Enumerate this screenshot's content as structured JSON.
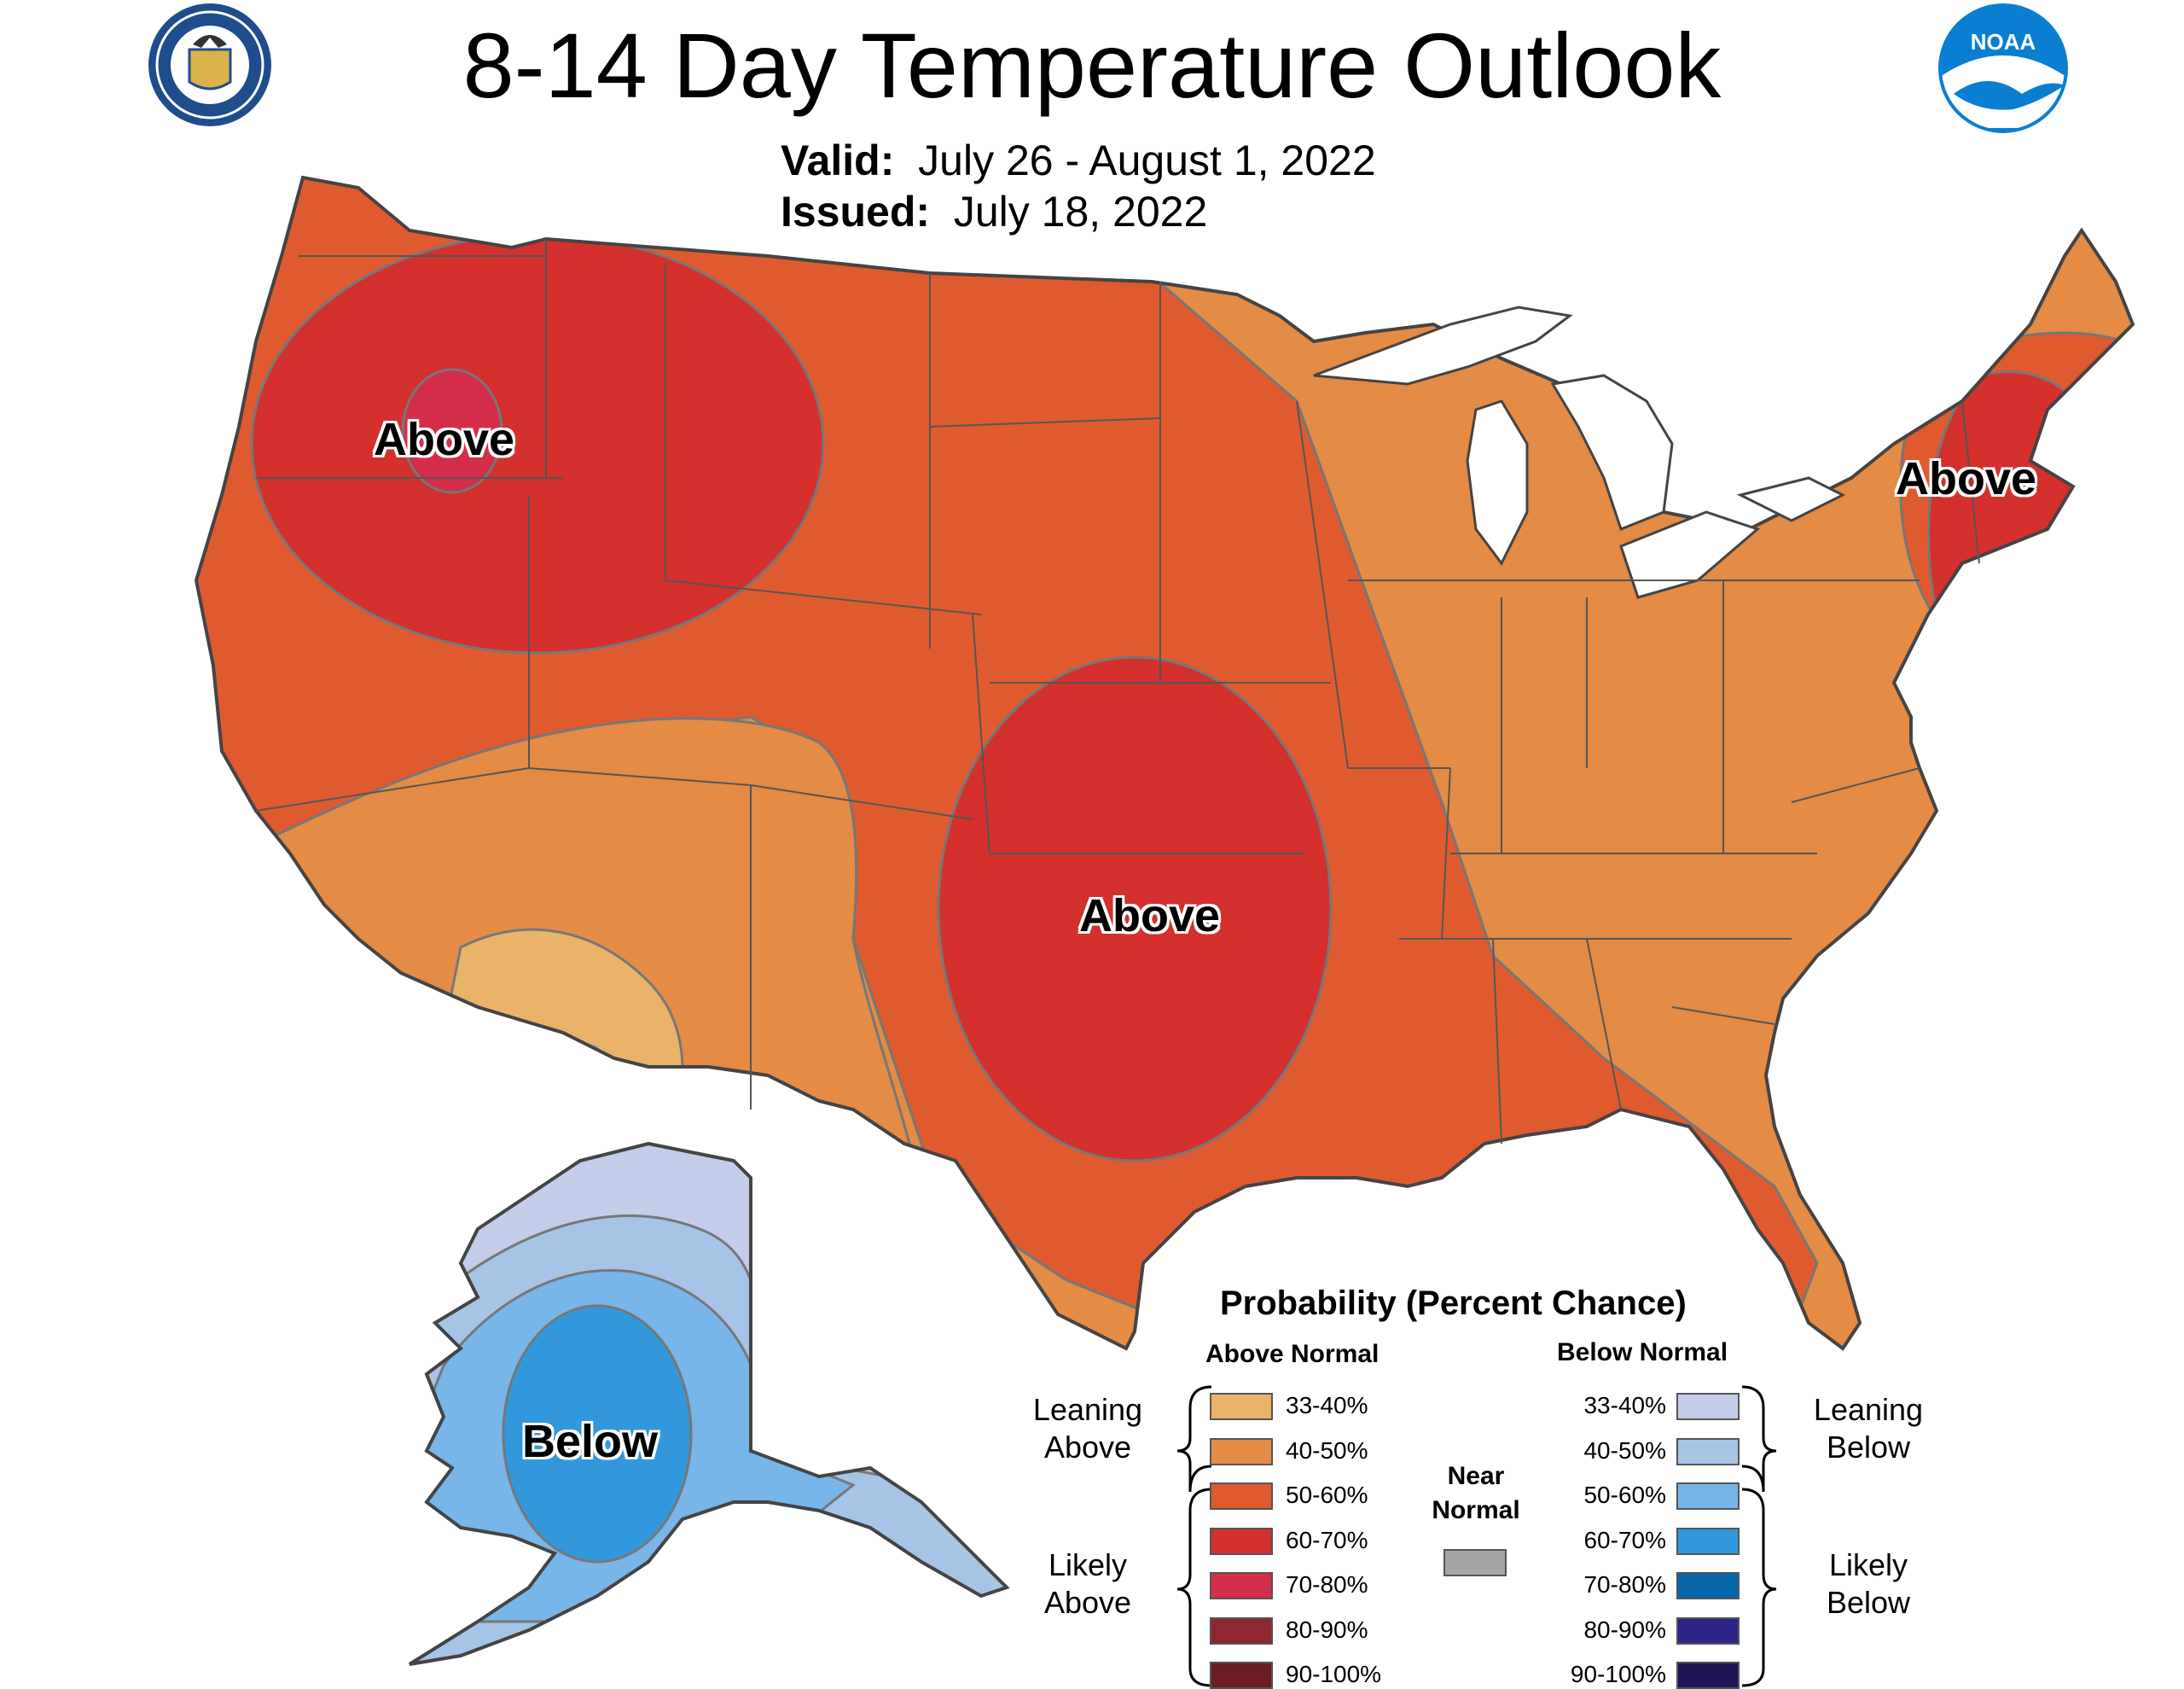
{
  "title": "8-14 Day Temperature Outlook",
  "valid_label": "Valid:",
  "valid_value": "July 26 - August 1, 2022",
  "issued_label": "Issued:",
  "issued_value": "July 18, 2022",
  "logos": {
    "left": "department-of-commerce-seal",
    "right": "noaa-logo",
    "noaa_text": "NOAA"
  },
  "region_labels": {
    "northwest": "Above",
    "plains": "Above",
    "northeast": "Above",
    "alaska": "Below"
  },
  "colors": {
    "above_33_40": "#e9b36a",
    "above_40_50": "#e48b45",
    "above_50_60": "#e05a2f",
    "above_60_70": "#d3302e",
    "above_70_80": "#d52e4a",
    "above_80_90": "#8f2730",
    "above_90_100": "#6b1c24",
    "near_normal": "#a4a4a4",
    "below_33_40": "#c3cde9",
    "below_40_50": "#a6c4e6",
    "below_50_60": "#78b5e8",
    "below_60_70": "#3398db",
    "below_70_80": "#0865aa",
    "below_80_90": "#2d2488",
    "below_90_100": "#1d1555",
    "great_lakes": "#ffffff"
  },
  "legend": {
    "title": "Probability (Percent Chance)",
    "above_header": "Above Normal",
    "below_header": "Below Normal",
    "near_header_line1": "Near",
    "near_header_line2": "Normal",
    "leaning_above_line1": "Leaning",
    "leaning_above_line2": "Above",
    "likely_above_line1": "Likely",
    "likely_above_line2": "Above",
    "leaning_below_line1": "Leaning",
    "leaning_below_line2": "Below",
    "likely_below_line1": "Likely",
    "likely_below_line2": "Below",
    "above_items": [
      "33-40%",
      "40-50%",
      "50-60%",
      "60-70%",
      "70-80%",
      "80-90%",
      "90-100%"
    ],
    "below_items": [
      "33-40%",
      "40-50%",
      "50-60%",
      "60-70%",
      "70-80%",
      "80-90%",
      "90-100%"
    ]
  }
}
